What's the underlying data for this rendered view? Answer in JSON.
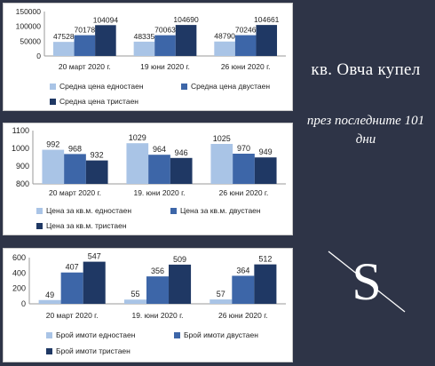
{
  "side": {
    "place": "кв. Овча купел",
    "period": "през последните 101 дни"
  },
  "colors": {
    "series1": "#a9c4e6",
    "series2": "#3d66a8",
    "series3": "#1f3864",
    "background": "#2e3447"
  },
  "logo": {
    "icon": "s-monogram-logo",
    "letter": "S"
  },
  "chart_data": [
    {
      "type": "bar",
      "categories": [
        "20 март 2020 г.",
        "19 юни 2020 г.",
        "26 юни 2020 г."
      ],
      "series": [
        {
          "name": "Средна цена едностаен",
          "values": [
            47528,
            48335,
            48790
          ]
        },
        {
          "name": "Средна цена двустаен",
          "values": [
            70178,
            70063,
            70246
          ]
        },
        {
          "name": "Средна цена тристаен",
          "values": [
            104094,
            104690,
            104661
          ]
        }
      ],
      "ylim": [
        0,
        150000
      ],
      "yticks": [
        "0",
        "50000",
        "100000",
        "150000"
      ],
      "legend": "bottom",
      "grid": false
    },
    {
      "type": "bar",
      "categories": [
        "20 март 2020 г.",
        "19. юни 2020 г.",
        "26 юни 2020 г."
      ],
      "series": [
        {
          "name": "Цена за кв.м. едностаен",
          "values": [
            992,
            1029,
            1025
          ]
        },
        {
          "name": "Цена за кв.м. двустаен",
          "values": [
            968,
            964,
            970
          ]
        },
        {
          "name": "Цена за кв.м. тристаен",
          "values": [
            932,
            946,
            949
          ]
        }
      ],
      "ylim": [
        800,
        1100
      ],
      "yticks": [
        "800",
        "900",
        "1000",
        "1100"
      ],
      "legend": "bottom",
      "grid": false
    },
    {
      "type": "bar",
      "categories": [
        "20 март 2020 г.",
        "19. юни 2020 г.",
        "26 юни 2020 г."
      ],
      "series": [
        {
          "name": "Брой имоти едностаен",
          "values": [
            49,
            55,
            57
          ]
        },
        {
          "name": "Брой имоти двустаен",
          "values": [
            407,
            356,
            364
          ]
        },
        {
          "name": "Брой имоти тристаен",
          "values": [
            547,
            509,
            512
          ]
        }
      ],
      "ylim": [
        0,
        600
      ],
      "yticks": [
        "0",
        "200",
        "400",
        "600"
      ],
      "legend": "bottom",
      "grid": false
    }
  ]
}
